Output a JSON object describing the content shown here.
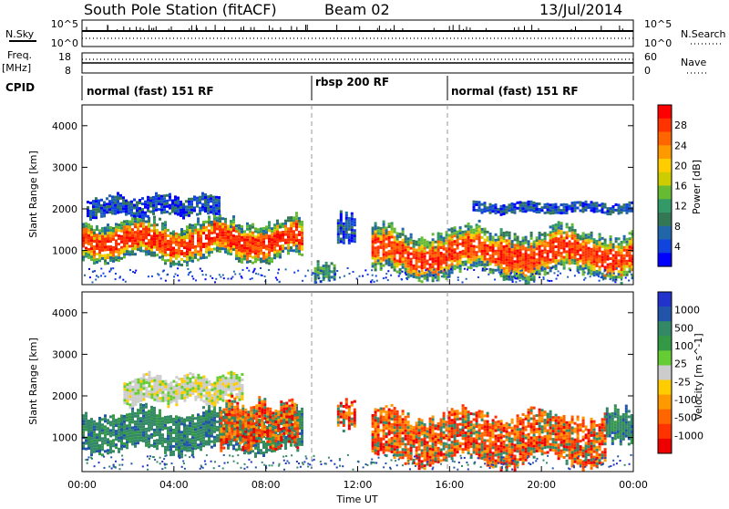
{
  "header": {
    "station": "South Pole Station (fitACF)",
    "beam": "Beam 02",
    "date": "13/Jul/2014"
  },
  "top_strips": {
    "nsky_label": "N.Sky",
    "nsearch_label": "N.Search",
    "freq_label_1": "Freq.",
    "freq_label_2": "[MHz]",
    "nave_label": "Nave",
    "cpid_label": "CPID",
    "noise_ticks_left": [
      "10^5",
      "10^0"
    ],
    "noise_ticks_right": [
      "10^5",
      "10^0"
    ],
    "freq_ticks": [
      "18",
      "8"
    ],
    "nave_ticks": [
      "60",
      "0"
    ]
  },
  "cpid_segments": [
    {
      "start_hr": 0,
      "end_hr": 10,
      "label": "normal (fast) 151 RF"
    },
    {
      "start_hr": 10,
      "end_hr": 16,
      "label": "rbsp 200 RF"
    },
    {
      "start_hr": 16,
      "end_hr": 24,
      "label": "normal (fast) 151 RF"
    }
  ],
  "chart_data": [
    {
      "type": "heatmap",
      "panel": "power",
      "ylabel": "Slant Range [km]",
      "xlabel": "Time UT",
      "xlim": [
        0,
        24
      ],
      "ylim": [
        180,
        4500
      ],
      "x_ticks": [
        "00:00",
        "04:00",
        "08:00",
        "12:00",
        "16:00",
        "20:00",
        "00:00"
      ],
      "y_ticks": [
        1000,
        2000,
        3000,
        4000
      ],
      "colorbar_label": "Power [dB]",
      "colorbar_ticks": [
        "28",
        "24",
        "20",
        "16",
        "12",
        "8",
        "4"
      ],
      "colorbar_colors": [
        "#ff0000",
        "#ff3300",
        "#ff6600",
        "#ff9900",
        "#ffcc00",
        "#cccc00",
        "#66bb33",
        "#339966",
        "#337755",
        "#2266aa",
        "#1144dd",
        "#0000ff"
      ],
      "regions": [
        {
          "t_start": 0.0,
          "t_end": 9.6,
          "r_low": 700,
          "r_high": 1900,
          "level": "high"
        },
        {
          "t_start": 0.2,
          "t_end": 6.0,
          "r_low": 1800,
          "r_high": 2400,
          "level": "low"
        },
        {
          "t_start": 10.1,
          "t_end": 11.0,
          "r_low": 250,
          "r_high": 800,
          "level": "mid"
        },
        {
          "t_start": 11.1,
          "t_end": 11.9,
          "r_low": 1100,
          "r_high": 2000,
          "level": "low"
        },
        {
          "t_start": 12.6,
          "t_end": 24.0,
          "r_low": 300,
          "r_high": 1700,
          "level": "high"
        },
        {
          "t_start": 17.0,
          "t_end": 24.0,
          "r_low": 1900,
          "r_high": 2200,
          "level": "low"
        }
      ]
    },
    {
      "type": "heatmap",
      "panel": "velocity",
      "ylabel": "Slant Range [km]",
      "xlabel": "Time UT",
      "xlim": [
        0,
        24
      ],
      "ylim": [
        180,
        4500
      ],
      "x_ticks": [
        "00:00",
        "04:00",
        "08:00",
        "12:00",
        "16:00",
        "20:00",
        "00:00"
      ],
      "y_ticks": [
        1000,
        2000,
        3000,
        4000
      ],
      "colorbar_label": "Velocity [m s^-1]",
      "colorbar_ticks": [
        "1000",
        "500",
        "100",
        "25",
        "-25",
        "-100",
        "-500",
        "-1000"
      ],
      "colorbar_colors": [
        "#2233cc",
        "#2255aa",
        "#338866",
        "#339944",
        "#66cc33",
        "#cccccc",
        "#ffcc00",
        "#ff9900",
        "#ff6600",
        "#ff3300",
        "#ee0000"
      ],
      "regions": [
        {
          "t_start": 0.0,
          "t_end": 9.6,
          "r_low": 600,
          "r_high": 1800,
          "velocity": "positive"
        },
        {
          "t_start": 1.8,
          "t_end": 7.0,
          "r_low": 1800,
          "r_high": 2600,
          "velocity": "near-zero"
        },
        {
          "t_start": 6.0,
          "t_end": 9.4,
          "r_low": 700,
          "r_high": 2000,
          "velocity": "negative"
        },
        {
          "t_start": 11.1,
          "t_end": 11.9,
          "r_low": 1200,
          "r_high": 2000,
          "velocity": "negative"
        },
        {
          "t_start": 12.6,
          "t_end": 22.8,
          "r_low": 300,
          "r_high": 1800,
          "velocity": "negative"
        },
        {
          "t_start": 22.8,
          "t_end": 24.0,
          "r_low": 800,
          "r_high": 1800,
          "velocity": "positive"
        }
      ]
    }
  ]
}
